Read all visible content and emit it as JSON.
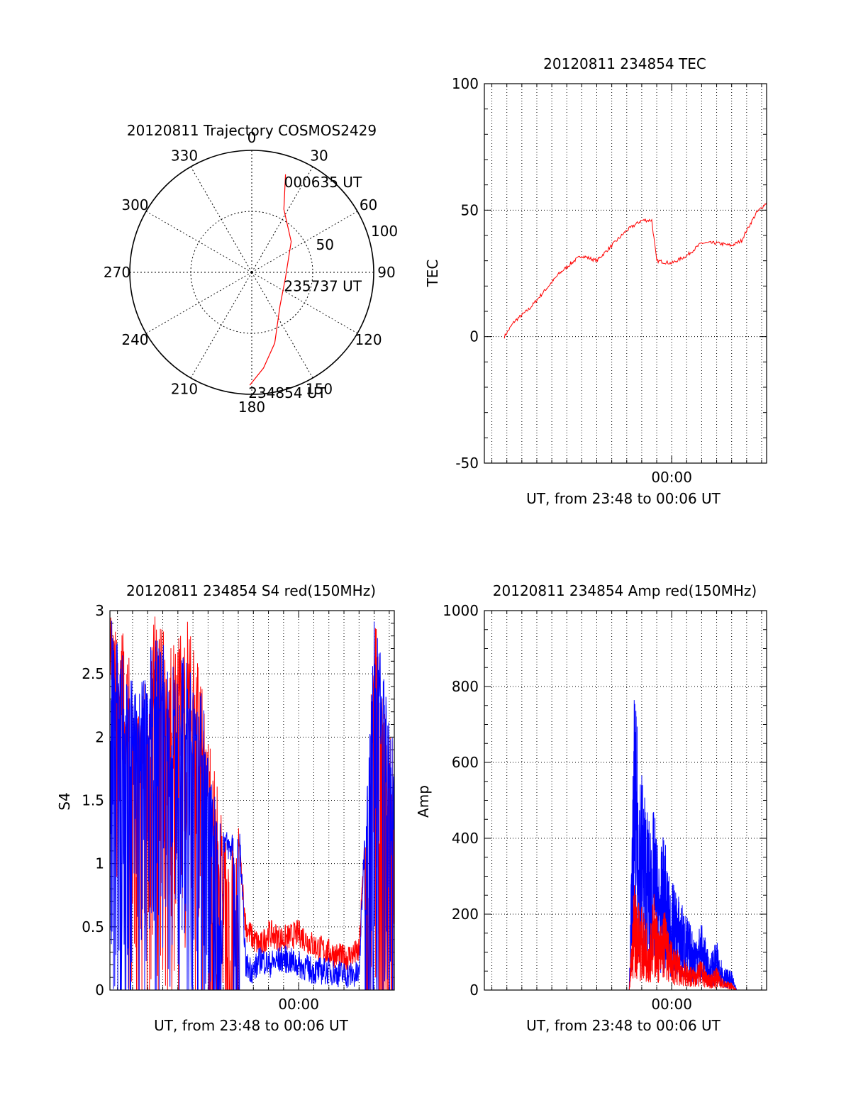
{
  "colors": {
    "red": "#ff0000",
    "blue": "#0000ff",
    "axis": "#000000",
    "grid": "#000000",
    "background": "#ffffff"
  },
  "chart_data": [
    {
      "id": "trajectory",
      "type": "polar",
      "title": "20120811 Trajectory COSMOS2429",
      "angle_labels": [
        "0",
        "30",
        "60",
        "90",
        "120",
        "150",
        "180",
        "210",
        "240",
        "270",
        "300",
        "330"
      ],
      "angle_values": [
        0,
        30,
        60,
        90,
        120,
        150,
        180,
        210,
        240,
        270,
        300,
        330
      ],
      "radial_labels": [
        "50",
        "100"
      ],
      "radial_values": [
        50,
        100
      ],
      "radial_max": 100,
      "grid": true,
      "series": [
        {
          "color": "red",
          "points": [
            [
              181,
              92.5
            ],
            [
              173,
              79
            ],
            [
              162,
              61
            ],
            [
              140,
              36
            ],
            [
              100,
              28
            ],
            [
              52,
              41
            ],
            [
              27,
              58
            ],
            [
              19,
              85
            ]
          ]
        }
      ],
      "annotations": [
        {
          "text": "000635 UT",
          "azimuth": 19,
          "zenith": 85
        },
        {
          "text": "235737 UT",
          "azimuth": 100,
          "zenith": 28
        },
        {
          "text": "234854 UT",
          "azimuth": 181,
          "zenith": 92.5
        }
      ]
    },
    {
      "id": "tec",
      "type": "line",
      "title": "20120811 234854 TEC",
      "xlabel": "UT, from 23:48 to 00:06 UT",
      "ylabel": "TEC",
      "xlim": [
        "23:47:30",
        "00:06:20"
      ],
      "ylim": [
        -50,
        100
      ],
      "yticks": [
        -50,
        0,
        50,
        100
      ],
      "xticks": [
        {
          "time": "00:00",
          "label": "00:00"
        }
      ],
      "grid": true,
      "series": [
        {
          "color": "red",
          "x": [
            "23:48:50",
            "23:49:30",
            "23:50:30",
            "23:51:30",
            "23:52:30",
            "23:53:30",
            "23:54:00",
            "23:55:00",
            "23:56:00",
            "23:57:00",
            "23:58:00",
            "23:58:40",
            "23:59:00",
            "00:00:00",
            "00:01:00",
            "00:02:00",
            "00:03:00",
            "00:04:00",
            "00:04:40",
            "00:05:00",
            "00:05:40",
            "00:06:20"
          ],
          "y": [
            0,
            6,
            11,
            18,
            25,
            30,
            32,
            30,
            36,
            42,
            46,
            46,
            30,
            29,
            32,
            37,
            37,
            36,
            38,
            42,
            49,
            53
          ]
        }
      ]
    },
    {
      "id": "s4",
      "type": "line",
      "title": "20120811 234854 S4 red(150MHz)",
      "xlabel": "UT, from 23:48 to 00:06 UT",
      "ylabel": "S4",
      "xlim": [
        "23:47:30",
        "00:06:20"
      ],
      "ylim": [
        0,
        3
      ],
      "yticks": [
        0,
        0.5,
        1,
        1.5,
        2,
        2.5,
        3
      ],
      "ytick_labels": [
        "0",
        "0.5",
        "1",
        "1.5",
        "2",
        "2.5",
        "3"
      ],
      "xticks": [
        {
          "time": "00:00",
          "label": "00:00"
        }
      ],
      "grid": true,
      "series": [
        {
          "color": "red",
          "x": [
            "23:47:30",
            "23:48:30",
            "23:49:30",
            "23:50:30",
            "23:51:30",
            "23:52:30",
            "23:53:30",
            "23:55:00",
            "23:56:00",
            "23:56:30",
            "23:57:00",
            "23:57:30",
            "23:58:00",
            "23:59:00",
            "00:00:00",
            "00:01:00",
            "00:02:00",
            "00:03:00",
            "00:04:00",
            "00:04:30",
            "00:05:00",
            "00:06:00",
            "00:06:20"
          ],
          "y": [
            3,
            2.8,
            2.2,
            3,
            2.7,
            3,
            2.5,
            1.3,
            1.2,
            0.5,
            0.4,
            0.35,
            0.45,
            0.4,
            0.45,
            0.35,
            0.3,
            0.25,
            0.3,
            1.5,
            3,
            2,
            2
          ]
        },
        {
          "color": "blue",
          "x": [
            "23:47:30",
            "23:48:30",
            "23:49:30",
            "23:50:30",
            "23:51:30",
            "23:52:30",
            "23:53:30",
            "23:55:00",
            "23:55:30",
            "23:56:00",
            "23:56:30",
            "23:57:00",
            "23:57:30",
            "23:58:00",
            "23:59:00",
            "00:00:00",
            "00:01:00",
            "00:02:00",
            "00:03:00",
            "00:04:00",
            "00:04:30",
            "00:05:00",
            "00:06:00",
            "00:06:20"
          ],
          "y": [
            3,
            2.6,
            2.4,
            2.9,
            2.6,
            2.8,
            2.4,
            1.2,
            1.1,
            1.4,
            0.2,
            0.15,
            0.25,
            0.2,
            0.25,
            0.2,
            0.15,
            0.15,
            0.12,
            0.12,
            1.6,
            3,
            2.2,
            2
          ]
        }
      ]
    },
    {
      "id": "amp",
      "type": "line",
      "title": "20120811 234854 Amp red(150MHz)",
      "xlabel": "UT, from 23:48 to 00:06 UT",
      "ylabel": "Amp",
      "xlim": [
        "23:47:30",
        "00:06:20"
      ],
      "ylim": [
        0,
        1000
      ],
      "yticks": [
        0,
        200,
        400,
        600,
        800,
        1000
      ],
      "xticks": [
        {
          "time": "00:00",
          "label": "00:00"
        }
      ],
      "grid": true,
      "series": [
        {
          "color": "blue",
          "x": [
            "23:48:50",
            "23:57:10",
            "23:57:30",
            "23:57:50",
            "23:58:10",
            "23:58:30",
            "23:58:50",
            "23:59:10",
            "23:59:30",
            "23:59:50",
            "00:00:10",
            "00:00:30",
            "00:01:00",
            "00:01:30",
            "00:02:00",
            "00:02:30",
            "00:03:00",
            "00:03:30",
            "00:04:00",
            "00:04:20",
            "00:06:20"
          ],
          "y": [
            0,
            0,
            780,
            650,
            550,
            450,
            480,
            350,
            420,
            300,
            280,
            250,
            200,
            150,
            180,
            90,
            130,
            60,
            50,
            0,
            0
          ]
        },
        {
          "color": "red",
          "x": [
            "23:48:50",
            "23:57:10",
            "23:57:30",
            "23:57:50",
            "23:58:10",
            "23:58:30",
            "23:58:50",
            "23:59:10",
            "23:59:30",
            "23:59:50",
            "00:00:10",
            "00:00:30",
            "00:01:00",
            "00:01:30",
            "00:02:00",
            "00:02:30",
            "00:03:00",
            "00:03:30",
            "00:04:00",
            "00:04:20",
            "00:06:20"
          ],
          "y": [
            0,
            0,
            300,
            240,
            200,
            180,
            260,
            160,
            230,
            140,
            120,
            100,
            70,
            60,
            80,
            40,
            60,
            25,
            20,
            0,
            0
          ]
        }
      ]
    }
  ]
}
